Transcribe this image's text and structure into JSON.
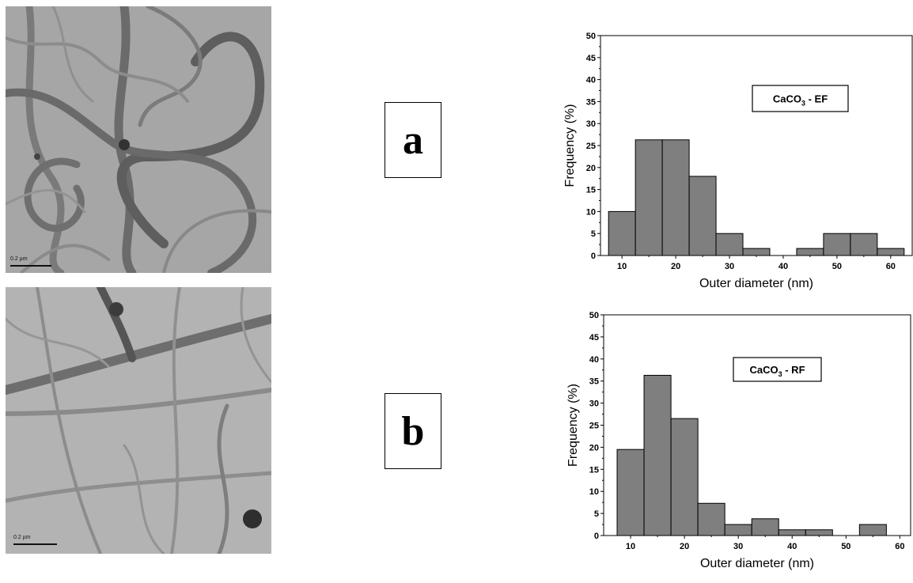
{
  "panel_labels": [
    "a",
    "b"
  ],
  "micrographs": [
    {
      "scale_text": "0.2 µm"
    },
    {
      "scale_text": "0.2 µm"
    }
  ],
  "chart_data": [
    {
      "type": "bar",
      "histogram": true,
      "legend_label": "CaCO3 - EF",
      "xlabel": "Outer diameter (nm)",
      "ylabel": "Frequency (%)",
      "xlim": [
        6,
        64
      ],
      "ylim": [
        0,
        50
      ],
      "x_ticks": [
        10,
        20,
        30,
        40,
        50,
        60
      ],
      "y_ticks": [
        0,
        5,
        10,
        15,
        20,
        25,
        30,
        35,
        40,
        45,
        50
      ],
      "bin_width": 5,
      "bin_centers": [
        10,
        15,
        20,
        25,
        30,
        35,
        40,
        45,
        50,
        55,
        60
      ],
      "values": [
        10,
        26.3,
        26.3,
        18,
        5,
        1.6,
        0,
        1.6,
        5,
        5,
        1.6
      ],
      "bar_color": "#7f7f7f"
    },
    {
      "type": "bar",
      "histogram": true,
      "legend_label": "CaCO3 - RF",
      "xlabel": "Outer diameter (nm)",
      "ylabel": "Frequency (%)",
      "xlim": [
        5,
        62
      ],
      "ylim": [
        0,
        50
      ],
      "x_ticks": [
        10,
        20,
        30,
        40,
        50,
        60
      ],
      "y_ticks": [
        0,
        5,
        10,
        15,
        20,
        25,
        30,
        35,
        40,
        45,
        50
      ],
      "bin_width": 5,
      "bin_centers": [
        10,
        15,
        20,
        25,
        30,
        35,
        40,
        45,
        50,
        55
      ],
      "values": [
        19.5,
        36.3,
        26.5,
        7.3,
        2.5,
        3.8,
        1.3,
        1.3,
        0,
        2.5
      ],
      "bar_color": "#7f7f7f"
    }
  ]
}
